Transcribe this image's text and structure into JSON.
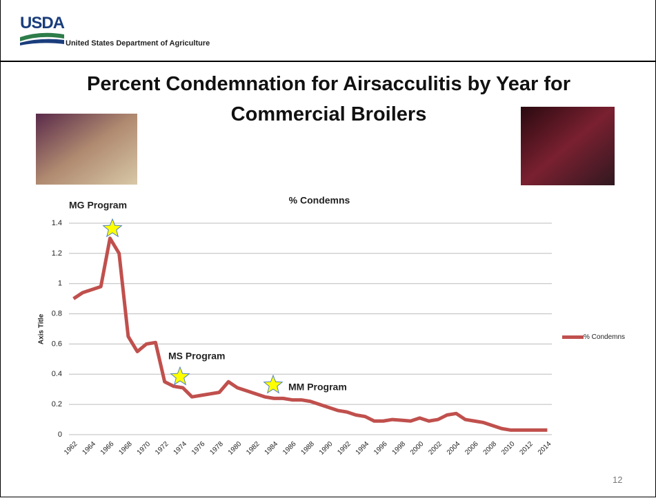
{
  "header": {
    "logo": "USDA",
    "agency": "United States Department of Agriculture"
  },
  "slide_title": [
    "Percent Condemnation for Airsacculitis by Year for",
    "Commercial Broilers"
  ],
  "page_number": "12",
  "chart_data": {
    "type": "line",
    "title": "% Condemns",
    "y_label": "Axis Title",
    "categories": [
      "1962",
      null,
      "1964",
      null,
      "1966",
      null,
      "1968",
      null,
      "1970",
      null,
      "1972",
      null,
      "1974",
      null,
      "1976",
      null,
      "1978",
      null,
      "1980",
      null,
      "1982",
      null,
      "1984",
      null,
      "1986",
      null,
      "1988",
      null,
      "1990",
      null,
      "1992",
      null,
      "1994",
      null,
      "1996",
      null,
      "1998",
      null,
      "2000",
      null,
      "2002",
      null,
      "2004",
      null,
      "2006",
      null,
      "2008",
      null,
      "2010",
      null,
      "2012",
      null,
      "2014"
    ],
    "series": [
      {
        "name": "% Condemns",
        "color": "#c0504d",
        "values": [
          0.9,
          0.94,
          0.96,
          0.98,
          1.3,
          1.2,
          0.65,
          0.55,
          0.6,
          0.61,
          0.35,
          0.32,
          0.31,
          0.25,
          0.26,
          0.27,
          0.28,
          0.35,
          0.31,
          0.29,
          0.27,
          0.25,
          0.24,
          0.24,
          0.23,
          0.23,
          0.22,
          0.2,
          0.18,
          0.16,
          0.15,
          0.13,
          0.12,
          0.09,
          0.09,
          0.1,
          0.095,
          0.09,
          0.11,
          0.09,
          0.1,
          0.13,
          0.14,
          0.1,
          0.09,
          0.08,
          0.06,
          0.04,
          0.03,
          0.03,
          0.03,
          0.03,
          0.03
        ]
      }
    ],
    "ylim": [
      0,
      1.4
    ],
    "yticks": [
      0,
      0.2,
      0.4,
      0.6,
      0.8,
      1,
      1.2,
      1.4
    ],
    "grid": true,
    "legend": "right",
    "annotations": [
      "MG Program",
      "MS Program",
      "MM Program"
    ]
  }
}
